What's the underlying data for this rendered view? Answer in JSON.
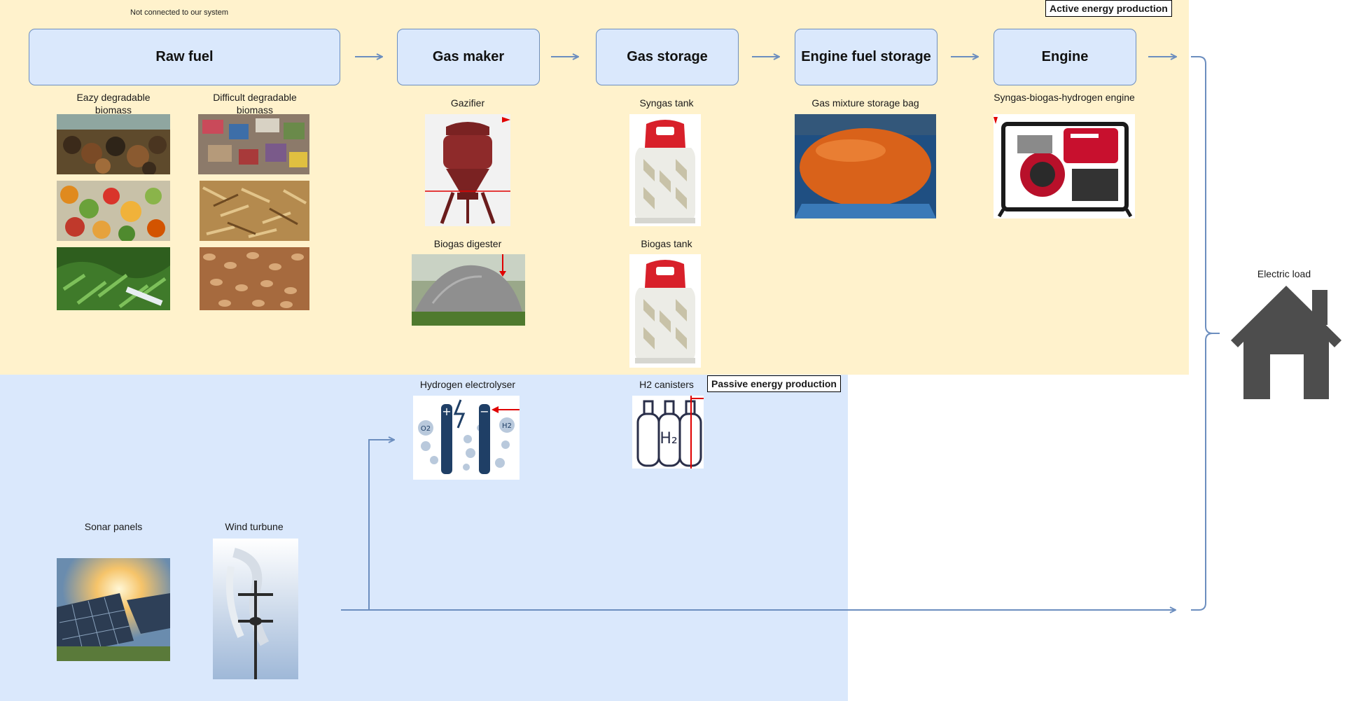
{
  "note": "Not connected to our system",
  "zones": {
    "active_label": "Active energy production",
    "passive_label": "Passive energy production"
  },
  "stages": [
    {
      "label": "Raw  fuel"
    },
    {
      "label": "Gas maker"
    },
    {
      "label": "Gas storage"
    },
    {
      "label": "Engine fuel storage"
    },
    {
      "label": "Engine"
    }
  ],
  "components": {
    "easy_biomass": "Eazy degradable biomass",
    "difficult_biomass": "Difficult degradable biomass",
    "gazifier": "Gazifier",
    "biogas_digester": "Biogas digester",
    "syngas_tank": "Syngas tank",
    "biogas_tank": "Biogas tank",
    "gas_bag": "Gas mixture storage bag",
    "engine": "Syngas-biogas-hydrogen engine",
    "electrolyser": "Hydrogen electrolyser",
    "h2_canisters": "H2 canisters",
    "solar": "Sonar panels",
    "wind": "Wind turbune",
    "load": "Electric load"
  },
  "colors": {
    "active_zone": "#fff2cc",
    "passive_zone": "#dae8fc",
    "box_fill": "#dae8fc",
    "box_stroke": "#6c8ebf",
    "arrow": "#6c8ebf",
    "house": "#4d4d4d"
  }
}
